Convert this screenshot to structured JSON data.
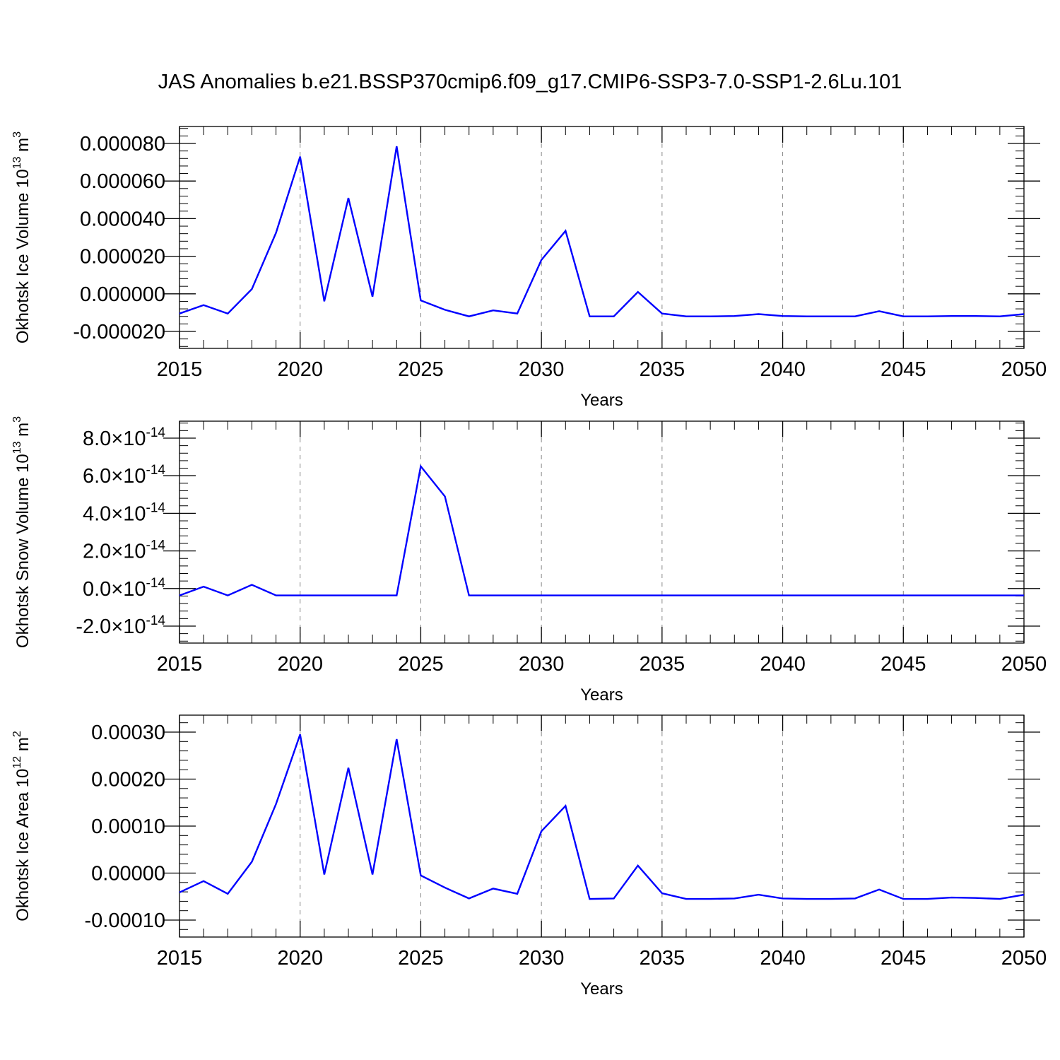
{
  "title": "JAS Anomalies b.e21.BSSP370cmip6.f09_g17.CMIP6-SSP3-7.0-SSP1-2.6Lu.101",
  "colors": {
    "series": "#0000ff",
    "axis": "#000000",
    "grid": "#888888"
  },
  "chart_data": [
    {
      "type": "line",
      "ylabel": {
        "main": "Okhotsk Ice Volume 10",
        "exp": "13",
        "unit": " m",
        "unit_exp": "3"
      },
      "xlabel": "Years",
      "xlim": [
        2015,
        2050
      ],
      "ylim": [
        -2e-05,
        8e-05
      ],
      "x_ticks": [
        2015,
        2020,
        2025,
        2030,
        2035,
        2040,
        2045,
        2050
      ],
      "x_tick_labels": [
        "2015",
        "2020",
        "2025",
        "2030",
        "2035",
        "2040",
        "2045",
        "2050"
      ],
      "y_ticks": [
        -2e-05,
        0.0,
        2e-05,
        4e-05,
        6e-05,
        8e-05
      ],
      "y_tick_labels": [
        {
          "m": "-0.000020"
        },
        {
          "m": "0.000000"
        },
        {
          "m": "0.000020"
        },
        {
          "m": "0.000040"
        },
        {
          "m": "0.000060"
        },
        {
          "m": "0.000080"
        }
      ],
      "x": [
        2015,
        2016,
        2017,
        2018,
        2019,
        2020,
        2021,
        2022,
        2023,
        2024,
        2025,
        2026,
        2027,
        2028,
        2029,
        2030,
        2031,
        2032,
        2033,
        2034,
        2035,
        2036,
        2037,
        2038,
        2039,
        2040,
        2041,
        2042,
        2043,
        2044,
        2045,
        2046,
        2047,
        2048,
        2049,
        2050
      ],
      "y": [
        -1.05e-05,
        -6e-06,
        -1.05e-05,
        2.5e-06,
        3.25e-05,
        7.3e-05,
        -4e-06,
        5.1e-05,
        -1.5e-06,
        7.85e-05,
        -3.5e-06,
        -8.5e-06,
        -1.2e-05,
        -8.8e-06,
        -1.05e-05,
        1.8e-05,
        3.35e-05,
        -1.2e-05,
        -1.2e-05,
        1e-06,
        -1.05e-05,
        -1.2e-05,
        -1.2e-05,
        -1.18e-05,
        -1.08e-05,
        -1.18e-05,
        -1.2e-05,
        -1.2e-05,
        -1.2e-05,
        -9.2e-06,
        -1.2e-05,
        -1.2e-05,
        -1.18e-05,
        -1.18e-05,
        -1.2e-05,
        -1.08e-05
      ]
    },
    {
      "type": "line",
      "ylabel": {
        "main": "Okhotsk Snow Volume 10",
        "exp": "13",
        "unit": " m",
        "unit_exp": "3"
      },
      "xlabel": "Years",
      "xlim": [
        2015,
        2050
      ],
      "ylim": [
        -2e-14,
        8e-14
      ],
      "x_ticks": [
        2015,
        2020,
        2025,
        2030,
        2035,
        2040,
        2045,
        2050
      ],
      "x_tick_labels": [
        "2015",
        "2020",
        "2025",
        "2030",
        "2035",
        "2040",
        "2045",
        "2050"
      ],
      "y_ticks": [
        -2e-14,
        0.0,
        2e-14,
        4e-14,
        6e-14,
        8e-14
      ],
      "y_tick_labels": [
        {
          "m": "-2.0",
          "times": "×",
          "b": "10",
          "e": "-14"
        },
        {
          "m": "0.0",
          "times": "×",
          "b": "10",
          "e": "-14"
        },
        {
          "m": "2.0",
          "times": "×",
          "b": "10",
          "e": "-14"
        },
        {
          "m": "4.0",
          "times": "×",
          "b": "10",
          "e": "-14"
        },
        {
          "m": "6.0",
          "times": "×",
          "b": "10",
          "e": "-14"
        },
        {
          "m": "8.0",
          "times": "×",
          "b": "10",
          "e": "-14"
        }
      ],
      "x": [
        2015,
        2016,
        2017,
        2018,
        2019,
        2020,
        2021,
        2022,
        2023,
        2024,
        2025,
        2026,
        2027,
        2028,
        2029,
        2030,
        2031,
        2032,
        2033,
        2034,
        2035,
        2036,
        2037,
        2038,
        2039,
        2040,
        2041,
        2042,
        2043,
        2044,
        2045,
        2046,
        2047,
        2048,
        2049,
        2050
      ],
      "y": [
        -3.7e-15,
        1e-15,
        -3.7e-15,
        2e-15,
        -3.7e-15,
        -3.7e-15,
        -3.7e-15,
        -3.7e-15,
        -3.7e-15,
        -3.7e-15,
        6.5e-14,
        4.9e-14,
        -3.7e-15,
        -3.7e-15,
        -3.7e-15,
        -3.7e-15,
        -3.7e-15,
        -3.7e-15,
        -3.7e-15,
        -3.7e-15,
        -3.7e-15,
        -3.7e-15,
        -3.7e-15,
        -3.7e-15,
        -3.7e-15,
        -3.7e-15,
        -3.7e-15,
        -3.7e-15,
        -3.7e-15,
        -3.7e-15,
        -3.7e-15,
        -3.7e-15,
        -3.7e-15,
        -3.7e-15,
        -3.7e-15,
        -3.7e-15
      ]
    },
    {
      "type": "line",
      "ylabel": {
        "main": "Okhotsk Ice Area 10",
        "exp": "12",
        "unit": " m",
        "unit_exp": "2"
      },
      "xlabel": "Years",
      "xlim": [
        2015,
        2050
      ],
      "ylim": [
        -0.0001,
        0.0003
      ],
      "x_ticks": [
        2015,
        2020,
        2025,
        2030,
        2035,
        2040,
        2045,
        2050
      ],
      "x_tick_labels": [
        "2015",
        "2020",
        "2025",
        "2030",
        "2035",
        "2040",
        "2045",
        "2050"
      ],
      "y_ticks": [
        -0.0001,
        0.0,
        0.0001,
        0.0002,
        0.0003
      ],
      "y_tick_labels": [
        {
          "m": "-0.00010"
        },
        {
          "m": "0.00000"
        },
        {
          "m": "0.00010"
        },
        {
          "m": "0.00020"
        },
        {
          "m": "0.00030"
        }
      ],
      "x": [
        2015,
        2016,
        2017,
        2018,
        2019,
        2020,
        2021,
        2022,
        2023,
        2024,
        2025,
        2026,
        2027,
        2028,
        2029,
        2030,
        2031,
        2032,
        2033,
        2034,
        2035,
        2036,
        2037,
        2038,
        2039,
        2040,
        2041,
        2042,
        2043,
        2044,
        2045,
        2046,
        2047,
        2048,
        2049,
        2050
      ],
      "y": [
        -4.1e-05,
        -1.7e-05,
        -4.4e-05,
        2.4e-05,
        0.000147,
        0.000295,
        -3e-06,
        0.000224,
        -3e-06,
        0.000285,
        -5e-06,
        -3.1e-05,
        -5.4e-05,
        -3.3e-05,
        -4.4e-05,
        8.9e-05,
        0.000143,
        -5.5e-05,
        -5.4e-05,
        1.6e-05,
        -4.3e-05,
        -5.5e-05,
        -5.5e-05,
        -5.4e-05,
        -4.6e-05,
        -5.4e-05,
        -5.5e-05,
        -5.5e-05,
        -5.4e-05,
        -3.5e-05,
        -5.5e-05,
        -5.5e-05,
        -5.2e-05,
        -5.3e-05,
        -5.5e-05,
        -4.6e-05
      ]
    }
  ]
}
